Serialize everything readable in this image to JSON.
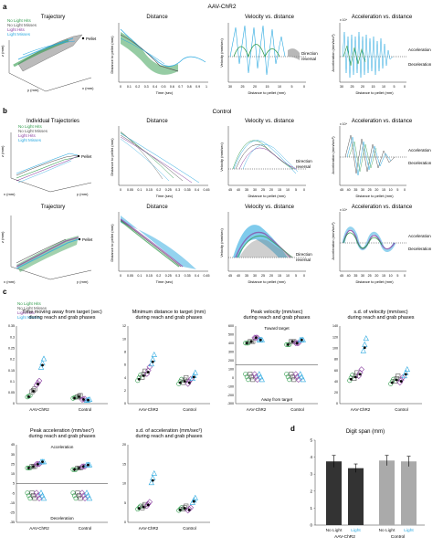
{
  "colors": {
    "no_light_hits": "#2e9a4a",
    "no_light_misses": "#555555",
    "light_hits": "#8a3fa0",
    "light_misses": "#29a8e0",
    "mean_gray": "#888888",
    "bar_dark": "#333333",
    "bar_light": "#aaaaaa"
  },
  "panel_letters": [
    "a",
    "b",
    "c",
    "d"
  ],
  "headers": {
    "a": "AAV-ChR2",
    "b": "Control"
  },
  "legend": [
    "No Light Hits",
    "No Light Misses",
    "Light Hits",
    "Light Misses"
  ],
  "row_a": {
    "traj_title": "Trajectory",
    "pellet": "Pellet",
    "dist_title": "Distance",
    "dist_ylabel": "Distance to pellet (mm)",
    "dist_xlabel": "Time (sec)",
    "dist_xticks": [
      "0",
      "0.1",
      "0.2",
      "0.3",
      "0.4",
      "0.5",
      "0.6",
      "0.7",
      "0.8",
      "0.9",
      "1"
    ],
    "vel_title": "Velocity vs. distance",
    "vel_ylabel": "Velocity (mm/sec)",
    "vel_xticks": [
      "30",
      "25",
      "20",
      "15",
      "10",
      "5",
      "0"
    ],
    "vel_note1": "Direction",
    "vel_note2": "reversal",
    "acc_title": "Acceleration vs. distance",
    "acc_ylabel": "Acceleration (mm/sec²)",
    "acc_note1": "Acceleration",
    "acc_note2": "Deceleration",
    "xlabel_dist": "Distance to pellet (mm)",
    "exp": "x 10⁴"
  },
  "row_b1": {
    "traj_title": "Individual Trajectories",
    "pellet": "Pellet",
    "dist_title": "Distance",
    "dist_xticks": [
      "0",
      "0.05",
      "0.1",
      "0.15",
      "0.2",
      "0.25",
      "0.3",
      "0.35",
      "0.4",
      "0.45"
    ],
    "vel_title": "Velocity vs. distance",
    "vel_xticks": [
      "45",
      "40",
      "35",
      "30",
      "25",
      "20",
      "15",
      "10",
      "5",
      "0"
    ],
    "acc_title": "Acceleration vs. distance",
    "acc_xticks": [
      "45",
      "40",
      "35",
      "30",
      "25",
      "20",
      "15",
      "10",
      "5",
      "0"
    ]
  },
  "row_b2": {
    "traj_title": "Trajectory",
    "dist_title": "Distance",
    "vel_title": "Velocity vs. distance",
    "acc_title": "Acceleration vs. distance"
  },
  "axis": {
    "x_mm": "x (mm)",
    "y_mm": "y (mm)",
    "z_mm": "z (mm)"
  },
  "panel_c": [
    {
      "title1": "Time moving away from target (sec)",
      "title2": "during reach and grab phases",
      "yticks": [
        "0",
        "0.05",
        "0.1",
        "0.15",
        "0.2",
        "0.25",
        "0.3",
        "0.35"
      ]
    },
    {
      "title1": "Minimum distance to target (mm)",
      "title2": "during reach and grab phases",
      "yticks": [
        "0",
        "2",
        "4",
        "6",
        "8",
        "10",
        "12"
      ]
    },
    {
      "title1": "Peak velocity (mm/sec)",
      "title2": "during reach and grab phases",
      "yticks": [
        "-300",
        "-200",
        "-100",
        "0",
        "100",
        "200",
        "300",
        "400",
        "500",
        "600"
      ],
      "note_top": "Toward target",
      "note_bot": "Away from target"
    },
    {
      "title1": "s.d. of velocity (mm/sec)",
      "title2": "during reach and grab phases",
      "yticks": [
        "0",
        "20",
        "40",
        "60",
        "80",
        "100",
        "120",
        "140"
      ]
    },
    {
      "title1": "Peak acceleration (mm/sec²)",
      "title2": "during reach and grab phases",
      "yticks": [
        "-35",
        "-25",
        "-15",
        "-5",
        "5",
        "15",
        "25",
        "35",
        "45"
      ],
      "note_top": "Acceleration",
      "note_bot": "Deceleration"
    },
    {
      "title1": "s.d. of acceleration (mm/sec²)",
      "title2": "during reach and grab phases",
      "yticks": [
        "0",
        "5",
        "10",
        "15",
        "20"
      ]
    }
  ],
  "group_labels": {
    "aav": "AAV-ChR2",
    "control": "Control"
  },
  "chart_data": {
    "type": "bar",
    "title": "Digit span (mm)",
    "categories": [
      "No Light",
      "Light",
      "No Light",
      "Light"
    ],
    "groups": [
      "AAV-ChR2",
      "Control"
    ],
    "values": [
      3.75,
      3.35,
      3.8,
      3.75
    ],
    "errors": [
      0.35,
      0.25,
      0.3,
      0.3
    ],
    "ylim": [
      0,
      5
    ],
    "yticks": [
      "0",
      "1",
      "2",
      "3",
      "4",
      "5"
    ]
  }
}
